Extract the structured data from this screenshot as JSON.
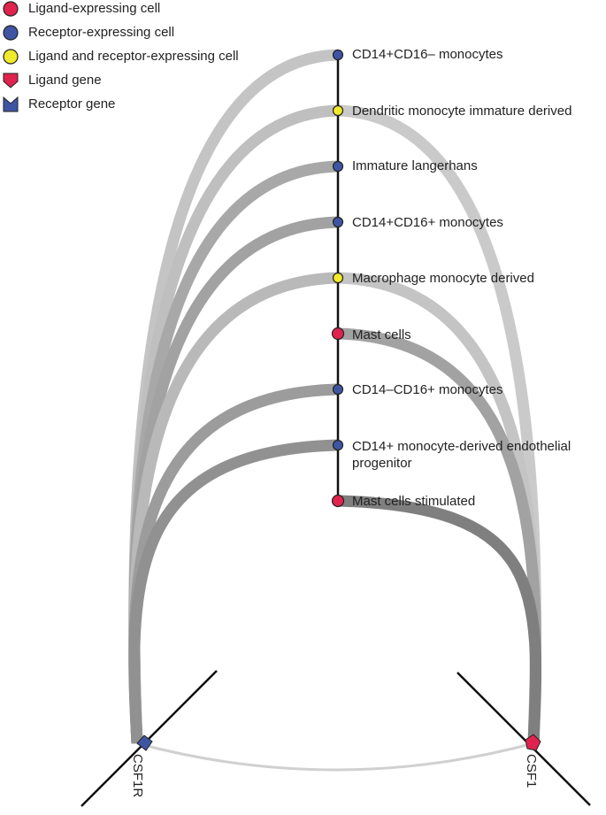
{
  "legend": [
    {
      "label": "Ligand-expressing cell",
      "shape": "circle",
      "color": "#e0234e"
    },
    {
      "label": "Receptor-expressing cell",
      "shape": "circle",
      "color": "#3f55a4"
    },
    {
      "label": "Ligand and receptor-expressing cell",
      "shape": "circle",
      "color": "#f1e92b"
    },
    {
      "label": "Ligand gene",
      "shape": "ligand-gene-marker",
      "color": "#e0234e"
    },
    {
      "label": "Receptor gene",
      "shape": "receptor-gene-marker",
      "color": "#3f55a4"
    }
  ],
  "cells": [
    {
      "label": "CD14+CD16– monocytes",
      "type": "receptor"
    },
    {
      "label": "Dendritic monocyte immature derived",
      "type": "both"
    },
    {
      "label": "Immature langerhans",
      "type": "receptor"
    },
    {
      "label": "CD14+CD16+ monocytes",
      "type": "receptor"
    },
    {
      "label": "Macrophage monocyte derived",
      "type": "both"
    },
    {
      "label": "Mast cells",
      "type": "ligand"
    },
    {
      "label": "CD14–CD16+ monocytes",
      "type": "receptor"
    },
    {
      "label": "CD14+ monocyte-derived endothelial progenitor",
      "type": "receptor"
    },
    {
      "label": "Mast cells stimulated",
      "type": "ligand"
    }
  ],
  "genes": [
    {
      "label": "CSF1R",
      "kind": "receptor"
    },
    {
      "label": "CSF1",
      "kind": "ligand"
    }
  ],
  "links": [
    {
      "cell": 0,
      "gene": 0,
      "weight": 0.25
    },
    {
      "cell": 1,
      "gene": 0,
      "weight": 0.3
    },
    {
      "cell": 2,
      "gene": 0,
      "weight": 0.5
    },
    {
      "cell": 3,
      "gene": 0,
      "weight": 0.55
    },
    {
      "cell": 4,
      "gene": 0,
      "weight": 0.35
    },
    {
      "cell": 6,
      "gene": 0,
      "weight": 0.6
    },
    {
      "cell": 7,
      "gene": 0,
      "weight": 0.7
    },
    {
      "cell": 1,
      "gene": 1,
      "weight": 0.2
    },
    {
      "cell": 4,
      "gene": 1,
      "weight": 0.25
    },
    {
      "cell": 5,
      "gene": 1,
      "weight": 0.55
    },
    {
      "cell": 8,
      "gene": 1,
      "weight": 0.85
    },
    {
      "gene_pair": [
        0,
        1
      ],
      "weight": 0.15
    }
  ],
  "colors": {
    "ligand": "#e0234e",
    "receptor": "#3f55a4",
    "both": "#f1e92b",
    "outline": "#222222",
    "axis": "#111111"
  }
}
